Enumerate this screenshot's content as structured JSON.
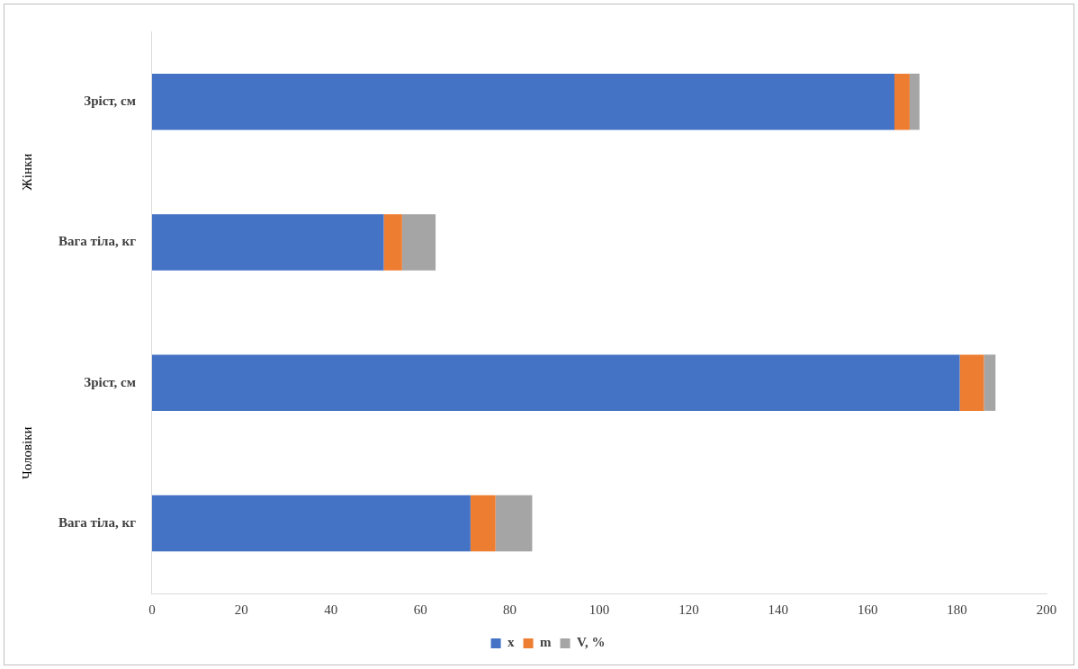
{
  "chart_data": {
    "type": "bar",
    "orientation": "horizontal",
    "stacked": true,
    "categories": [
      "Зріст, см",
      "Вага тіла, кг",
      "Зріст, см",
      "Вага тіла, кг"
    ],
    "category_groups": [
      {
        "label": "Жінки",
        "count": 2
      },
      {
        "label": "Чоловіки",
        "count": 2
      }
    ],
    "series": [
      {
        "name": "x",
        "color": "#4472c4",
        "values": [
          166,
          51.8,
          180.6,
          71.2
        ]
      },
      {
        "name": "m",
        "color": "#ed7d31",
        "values": [
          3.4,
          4.1,
          5.4,
          5.6
        ]
      },
      {
        "name": "V, %",
        "color": "#a5a5a5",
        "values": [
          2.2,
          7.5,
          2.6,
          8.2
        ]
      }
    ],
    "xlim": [
      0,
      200
    ],
    "xticks": [
      0,
      20,
      40,
      60,
      80,
      100,
      120,
      140,
      160,
      180,
      200
    ],
    "grid": false,
    "legend": "bottom"
  }
}
